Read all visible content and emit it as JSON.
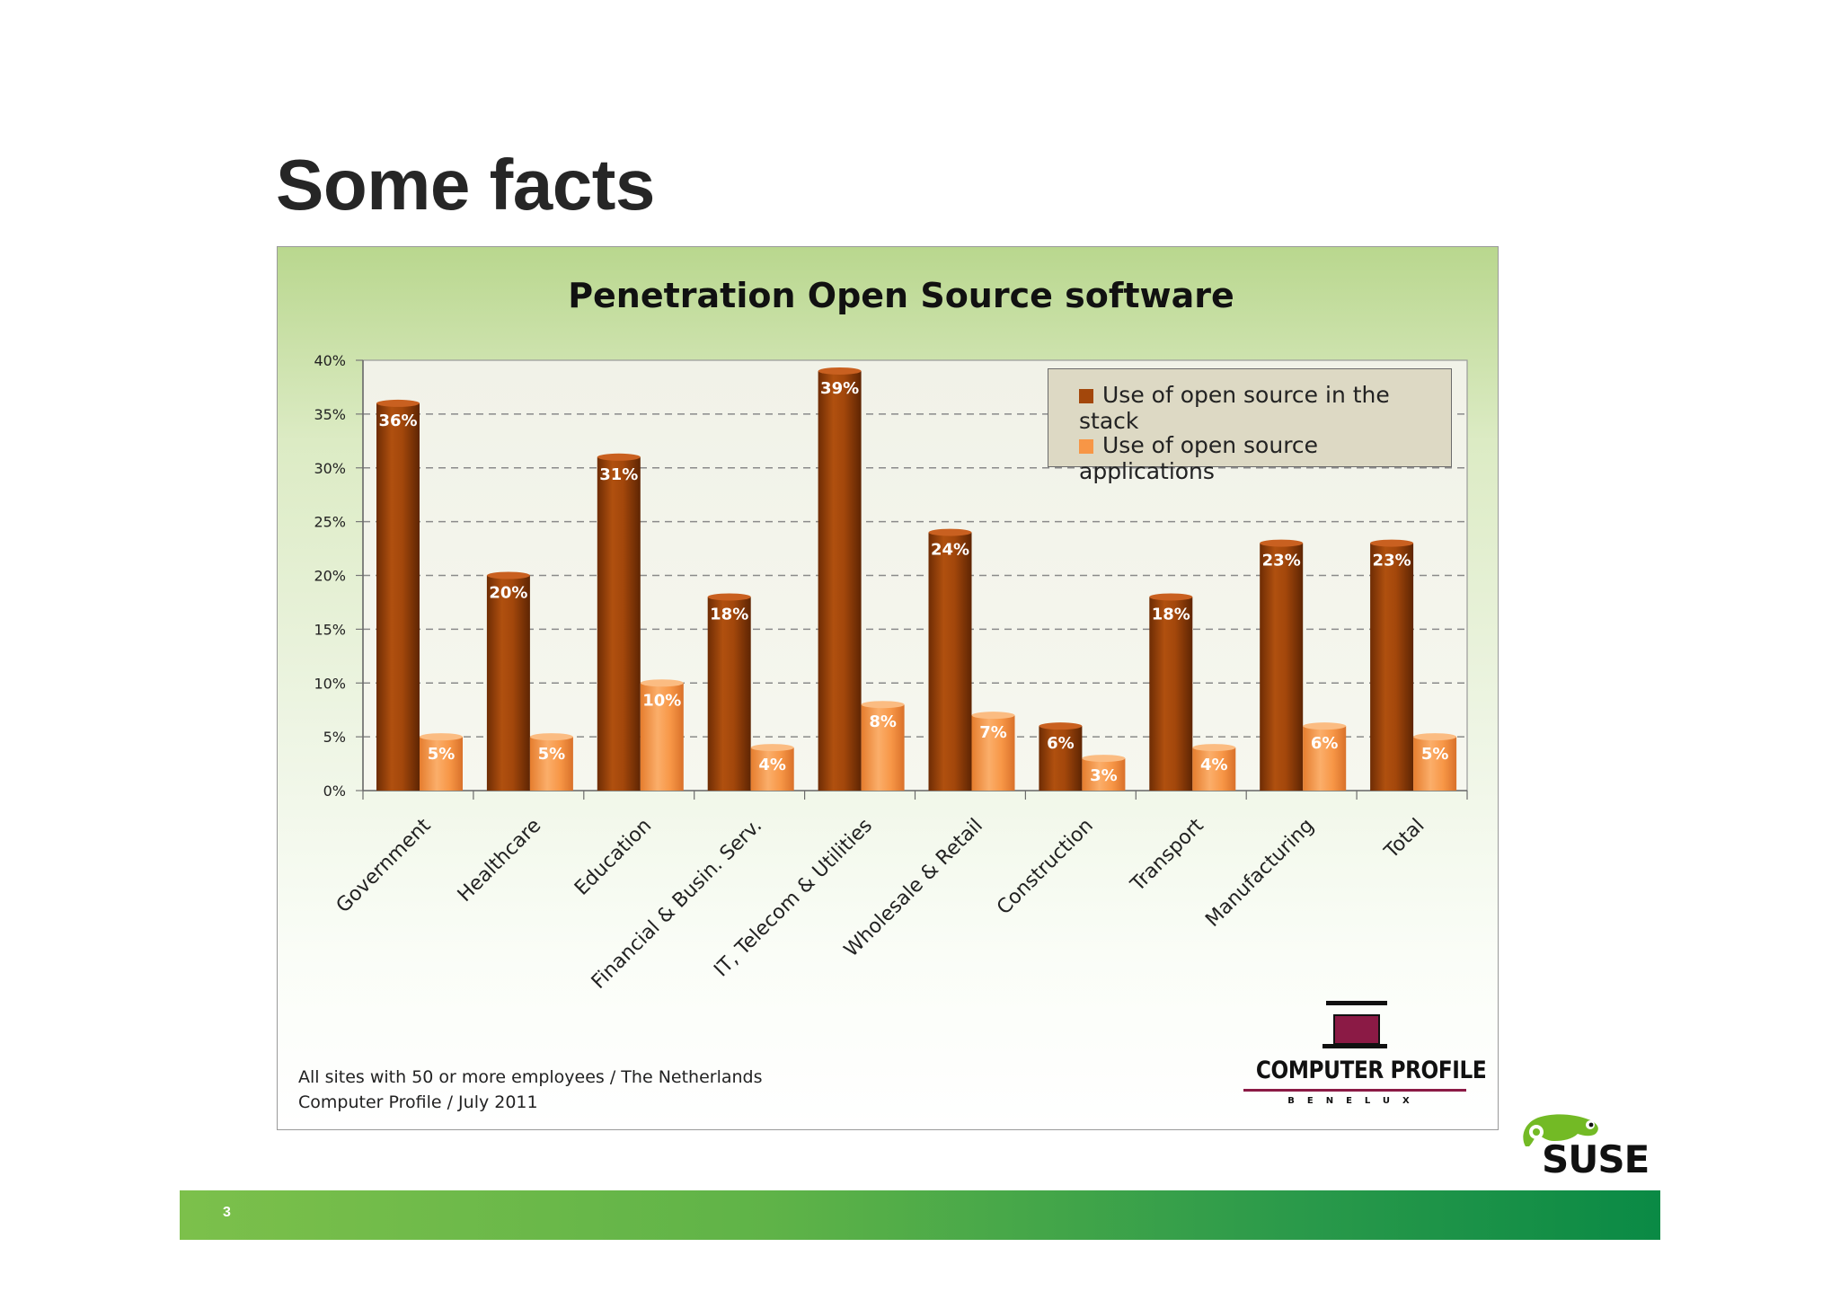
{
  "slide": {
    "title": "Some facts",
    "page_number": "3",
    "footnote_line1": "All sites with 50 or more employees / The Netherlands",
    "footnote_line2": "Computer Profile / July 2011"
  },
  "logos": {
    "computer_profile_name": "COMPUTER PROFILE",
    "computer_profile_sub": "BENELUX",
    "suse_name": "SUSE"
  },
  "colors": {
    "stack": "#a3470b",
    "applications": "#f79646",
    "band_start": "#7cc04b",
    "band_end": "#0a8a45",
    "cp_brand": "#8b1a45"
  },
  "chart_data": {
    "type": "bar",
    "title": "Penetration Open Source software",
    "categories": [
      "Government",
      "Healthcare",
      "Education",
      "Financial & Busin. Serv.",
      "IT, Telecom & Utilities",
      "Wholesale & Retail",
      "Construction",
      "Transport",
      "Manufacturing",
      "Total"
    ],
    "series": [
      {
        "name": "Use of open source in the stack",
        "values": [
          36,
          20,
          31,
          18,
          39,
          24,
          6,
          18,
          23,
          23
        ],
        "labels": [
          "36%",
          "20%",
          "31%",
          "18%",
          "39%",
          "24%",
          "6%",
          "18%",
          "23%",
          "23%"
        ]
      },
      {
        "name": "Use of open source applications",
        "values": [
          5,
          5,
          10,
          4,
          8,
          7,
          3,
          4,
          6,
          5
        ],
        "labels": [
          "5%",
          "5%",
          "10%",
          "4%",
          "8%",
          "7%",
          "3%",
          "4%",
          "6%",
          "5%"
        ]
      }
    ],
    "ylim": [
      0,
      40
    ],
    "yticks": [
      0,
      5,
      10,
      15,
      20,
      25,
      30,
      35,
      40
    ],
    "ytick_labels": [
      "0%",
      "5%",
      "10%",
      "15%",
      "20%",
      "25%",
      "30%",
      "35%",
      "40%"
    ],
    "grid": "dashed horizontal",
    "legend_position": "top-right",
    "bar_style": "3d cylinders"
  }
}
